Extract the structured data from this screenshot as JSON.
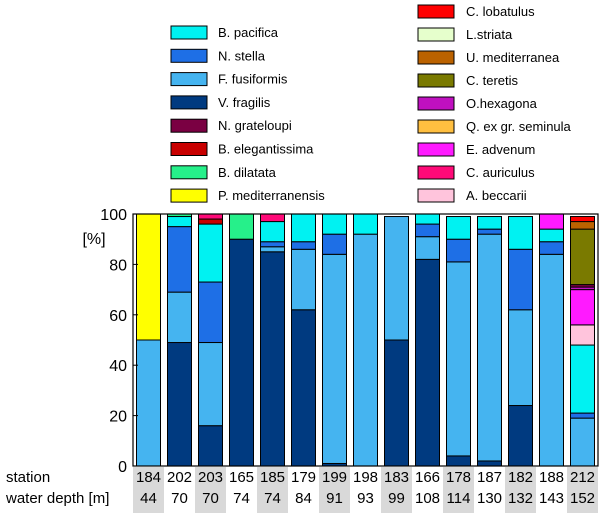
{
  "chart_data": {
    "type": "bar",
    "stacked": true,
    "y_label": "[%]",
    "ylim": [
      0,
      100
    ],
    "yticks": [
      0,
      20,
      40,
      60,
      80,
      100
    ],
    "row_labels": {
      "station": "station",
      "depth": "water depth [m]"
    },
    "stations": [
      "184",
      "202",
      "203",
      "165",
      "185",
      "179",
      "199",
      "198",
      "183",
      "166",
      "178",
      "187",
      "182",
      "188",
      "212"
    ],
    "depths": [
      "44",
      "70",
      "70",
      "74",
      "74",
      "84",
      "91",
      "93",
      "99",
      "108",
      "114",
      "130",
      "132",
      "143",
      "152"
    ],
    "shaded_columns": [
      0,
      2,
      4,
      6,
      8,
      10,
      12,
      14
    ],
    "series": [
      {
        "name": "V. fragilis",
        "color": "#003a80",
        "values": [
          0,
          49,
          16,
          90,
          85,
          62,
          1,
          0,
          50,
          82,
          4,
          2,
          24,
          0,
          0
        ]
      },
      {
        "name": "F. fusiformis",
        "color": "#45b4f0",
        "values": [
          50,
          20,
          33,
          0,
          2,
          24,
          83,
          92,
          49,
          9,
          77,
          90,
          38,
          84,
          19
        ]
      },
      {
        "name": "N. stella",
        "color": "#1e6fe6",
        "values": [
          0,
          26,
          24,
          0,
          2,
          3,
          8,
          0,
          0,
          5,
          9,
          2,
          24,
          5,
          2
        ]
      },
      {
        "name": "B. pacifica",
        "color": "#00f2f2",
        "values": [
          0,
          4,
          23,
          0,
          8,
          11,
          8,
          8,
          0,
          4,
          9,
          5,
          13,
          5,
          27
        ]
      },
      {
        "name": "A. beccarii",
        "color": "#ffc4dc",
        "values": [
          0,
          0,
          0,
          0,
          0,
          0,
          0,
          0,
          0,
          0,
          0,
          0,
          0,
          0,
          8
        ]
      },
      {
        "name": "E. advenum",
        "color": "#ff1aff",
        "values": [
          0,
          0,
          0,
          0,
          0,
          0,
          0,
          0,
          0,
          0,
          0,
          0,
          0,
          6,
          14
        ]
      },
      {
        "name": "O.hexagona",
        "color": "#c010c0",
        "values": [
          0,
          0,
          0,
          0,
          0,
          0,
          0,
          0,
          0,
          0,
          0,
          0,
          0,
          0,
          1
        ]
      },
      {
        "name": "N. grateloupi",
        "color": "#7a0042",
        "values": [
          0,
          0,
          0,
          0,
          0,
          0,
          0,
          0,
          0,
          0,
          0,
          0,
          0,
          0,
          1
        ]
      },
      {
        "name": "C. teretis",
        "color": "#7a7a00",
        "values": [
          0,
          0,
          0,
          0,
          0,
          0,
          0,
          0,
          0,
          0,
          0,
          0,
          0,
          0,
          22
        ]
      },
      {
        "name": "U. mediterranea",
        "color": "#bb6200",
        "values": [
          0,
          0,
          0,
          0,
          0,
          0,
          0,
          0,
          0,
          0,
          0,
          0,
          0,
          0,
          3
        ]
      },
      {
        "name": "C. lobatulus",
        "color": "#ff0000",
        "values": [
          0,
          0,
          0,
          0,
          0,
          0,
          0,
          0,
          0,
          0,
          0,
          0,
          0,
          0,
          2
        ]
      },
      {
        "name": "B. elegantissima",
        "color": "#c80000",
        "values": [
          0,
          0,
          2,
          0,
          0,
          0,
          0,
          0,
          0,
          0,
          0,
          0,
          0,
          0,
          0
        ]
      },
      {
        "name": "C. auriculus",
        "color": "#ff0a78",
        "values": [
          0,
          0,
          2,
          0,
          3,
          0,
          0,
          0,
          0,
          0,
          0,
          0,
          0,
          0,
          0
        ]
      },
      {
        "name": "B. dilatata",
        "color": "#26f08a",
        "values": [
          0,
          1,
          0,
          10,
          0,
          0,
          0,
          0,
          0,
          0,
          0,
          0,
          0,
          0,
          0
        ]
      },
      {
        "name": "P. mediterranensis",
        "color": "#ffff00",
        "values": [
          50,
          0,
          0,
          0,
          0,
          0,
          0,
          0,
          0,
          0,
          0,
          0,
          0,
          0,
          0
        ]
      },
      {
        "name": "Q. ex gr. seminula",
        "color": "#ffbf40",
        "values": [
          0,
          0,
          0,
          0,
          0,
          0,
          0,
          0,
          0,
          0,
          0,
          0,
          0,
          0,
          0
        ]
      },
      {
        "name": "L.striata",
        "color": "#e6ffcc",
        "values": [
          0,
          0,
          0,
          0,
          0,
          0,
          0,
          0,
          0,
          0,
          0,
          0,
          0,
          0,
          0
        ]
      }
    ],
    "legend_left": [
      "B. pacifica",
      "N. stella",
      "F. fusiformis",
      "V. fragilis",
      "N. grateloupi",
      "B. elegantissima",
      "B. dilatata",
      "P. mediterranensis"
    ],
    "legend_right": [
      "C. lobatulus",
      "L.striata",
      "U. mediterranea",
      "C. teretis",
      "O.hexagona",
      "Q. ex gr. seminula",
      "E. advenum",
      "C. auriculus",
      "A. beccarii"
    ]
  }
}
